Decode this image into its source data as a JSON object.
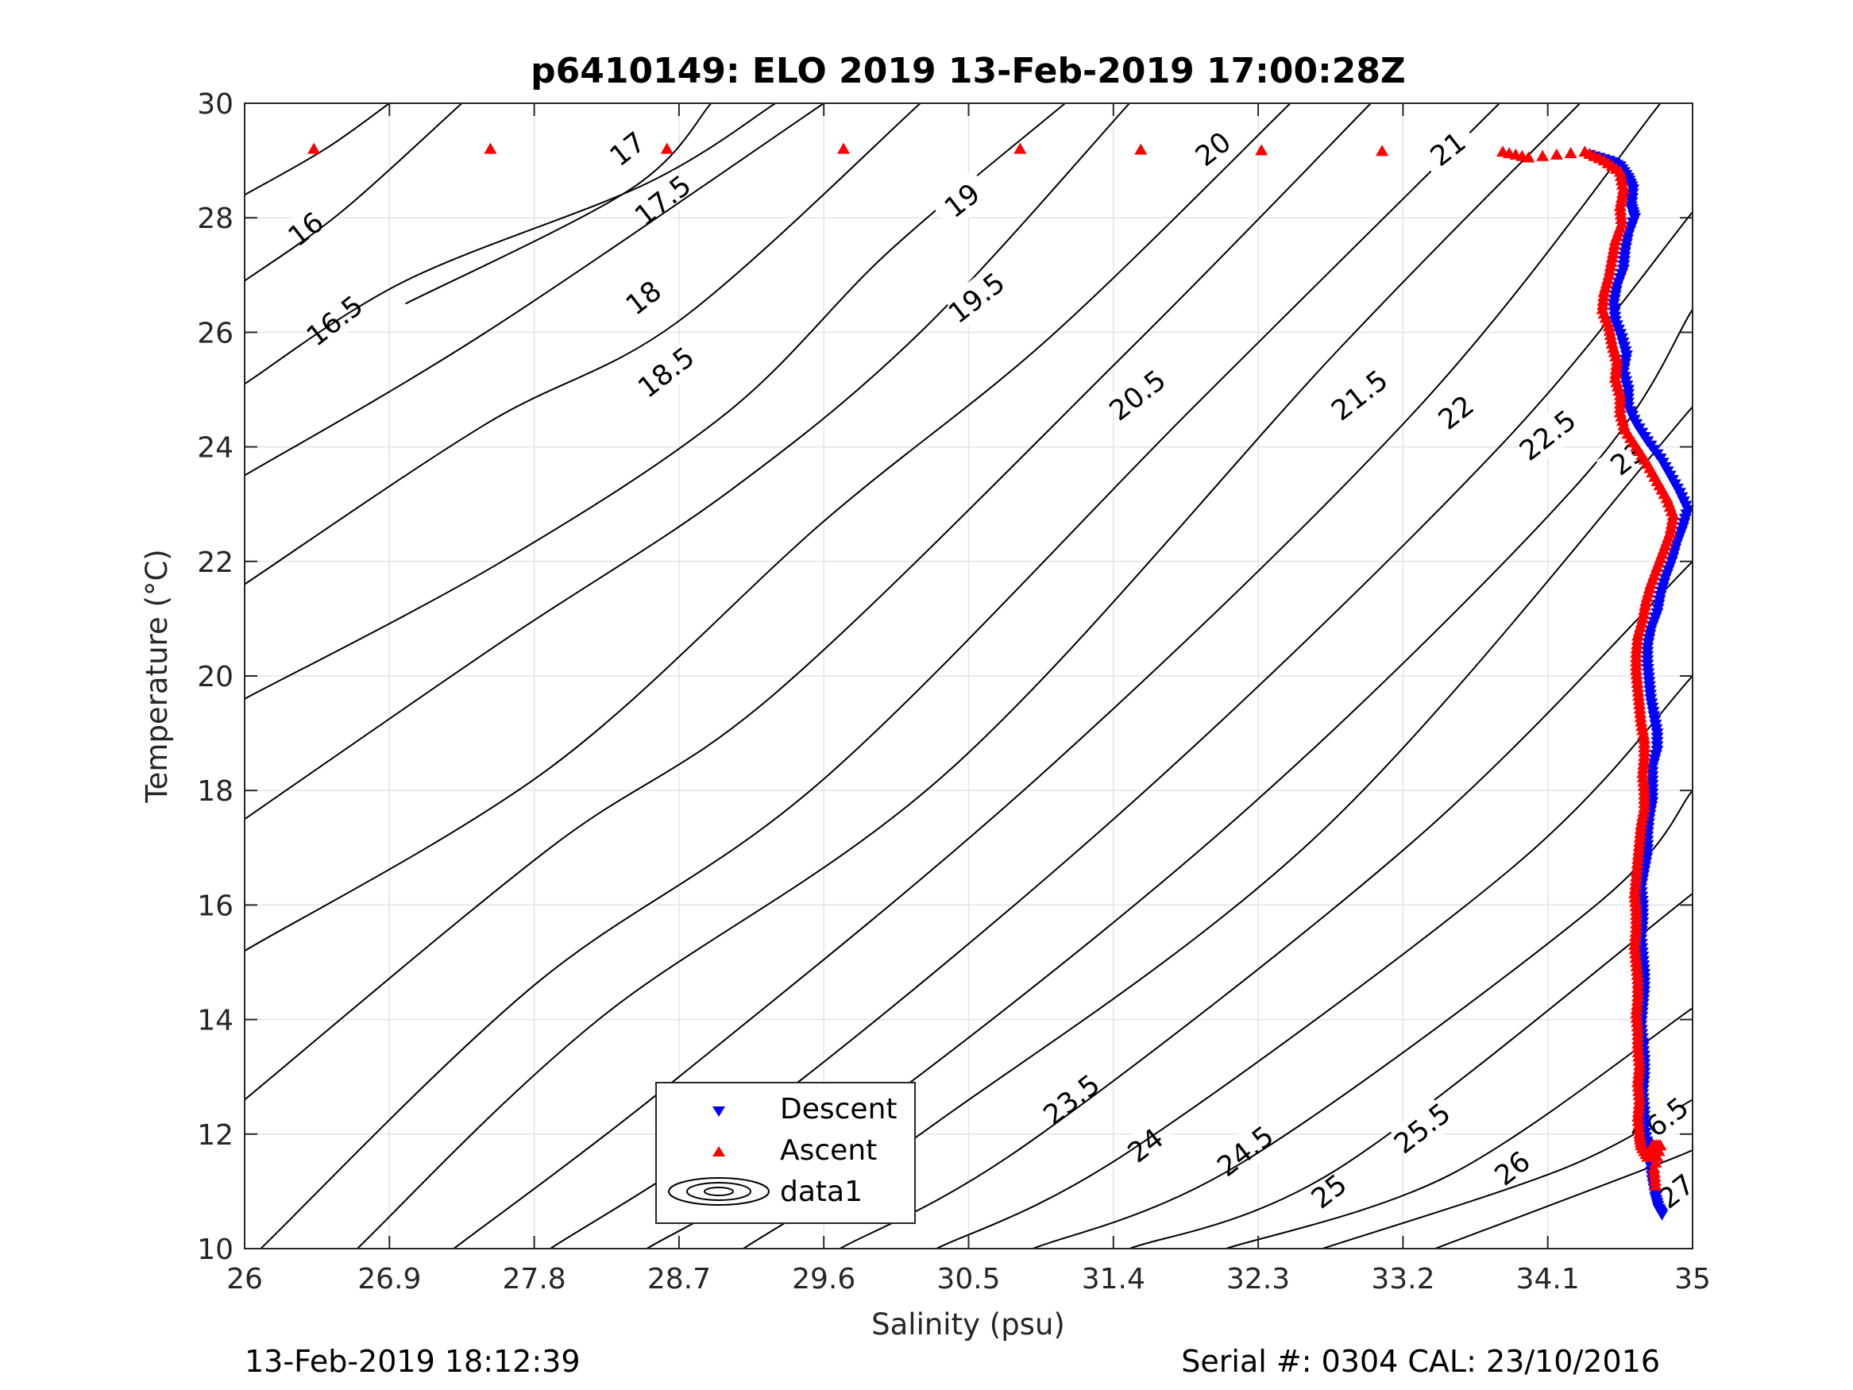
{
  "chart_data": {
    "type": "scatter",
    "title": "p6410149: ELO 2019 13-Feb-2019 17:00:28Z",
    "xlabel": "Salinity (psu)",
    "ylabel": "Temperature (°C)",
    "xlim": [
      26,
      35
    ],
    "ylim": [
      10,
      30
    ],
    "grid": true,
    "x_ticks": [
      "26",
      "26.9",
      "27.8",
      "28.7",
      "29.6",
      "30.5",
      "31.4",
      "32.3",
      "33.2",
      "34.1",
      "35"
    ],
    "y_ticks": [
      "10",
      "12",
      "14",
      "16",
      "18",
      "20",
      "22",
      "24",
      "26",
      "28",
      "30"
    ],
    "legend": {
      "placement": "bottom-center",
      "entries": [
        "Descent",
        "Ascent",
        "data1"
      ]
    },
    "density_contours": [
      {
        "label": "16",
        "points": [
          [
            26,
            28.4
          ],
          [
            26.5,
            29.2
          ],
          [
            26.9,
            30
          ]
        ],
        "label_at": [
          26.38,
          27.8
        ]
      },
      {
        "label": "16.5",
        "points": [
          [
            26,
            26.9
          ],
          [
            26.6,
            28.1
          ],
          [
            27.35,
            30
          ]
        ],
        "label_at": [
          26.56,
          26.2
        ]
      },
      {
        "label": "17",
        "points": [
          [
            27,
            26.5
          ],
          [
            28.4,
            28.5
          ],
          [
            28.9,
            30
          ]
        ],
        "label_at": [
          28.38,
          29.2
        ]
      },
      {
        "label": "17.5",
        "points": [
          [
            26,
            25.1
          ],
          [
            27.0,
            26.9
          ],
          [
            28.5,
            28.6
          ],
          [
            29.3,
            30
          ]
        ],
        "label_at": [
          28.6,
          28.3
        ]
      },
      {
        "label": "18",
        "points": [
          [
            26,
            23.5
          ],
          [
            27.5,
            26.0
          ],
          [
            29.6,
            30
          ]
        ],
        "label_at": [
          28.48,
          26.6
        ]
      },
      {
        "label": "18.5",
        "points": [
          [
            26,
            21.6
          ],
          [
            27.5,
            24.4
          ],
          [
            28.7,
            26.2
          ],
          [
            30.2,
            30
          ]
        ],
        "label_at": [
          28.62,
          25.3
        ]
      },
      {
        "label": "19",
        "points": [
          [
            26,
            19.6
          ],
          [
            27.6,
            22.0
          ],
          [
            29.0,
            24.6
          ],
          [
            30.0,
            27.4
          ],
          [
            31.1,
            30
          ]
        ],
        "label_at": [
          30.46,
          28.3
        ]
      },
      {
        "label": "19.5",
        "points": [
          [
            26,
            17.5
          ],
          [
            27.6,
            20.6
          ],
          [
            29.0,
            23.2
          ],
          [
            30.2,
            26.0
          ],
          [
            31.5,
            30
          ]
        ],
        "label_at": [
          30.55,
          26.6
        ]
      },
      {
        "label": "20",
        "points": [
          [
            26,
            15.2
          ],
          [
            27.9,
            18.4
          ],
          [
            29.6,
            22.7
          ],
          [
            31.0,
            25.9
          ],
          [
            32.5,
            30
          ]
        ],
        "label_at": [
          32.02,
          29.2
        ]
      },
      {
        "label": "20.5",
        "points": [
          [
            26,
            12.6
          ],
          [
            27.9,
            17.0
          ],
          [
            29.3,
            19.7
          ],
          [
            31.5,
            25.7
          ],
          [
            33.0,
            30
          ]
        ],
        "label_at": [
          31.55,
          24.9
        ]
      },
      {
        "label": "21",
        "points": [
          [
            26.1,
            10
          ],
          [
            27.8,
            14.6
          ],
          [
            29.6,
            18.2
          ],
          [
            31.9,
            24.7
          ],
          [
            33.8,
            30
          ]
        ],
        "label_at": [
          33.48,
          29.2
        ]
      },
      {
        "label": "21.5",
        "points": [
          [
            26.7,
            10
          ],
          [
            28.2,
            14.0
          ],
          [
            30.4,
            18.4
          ],
          [
            32.8,
            25.7
          ],
          [
            34.3,
            30
          ]
        ],
        "label_at": [
          32.93,
          24.9
        ]
      },
      {
        "label": "22",
        "points": [
          [
            27.3,
            10
          ],
          [
            28.7,
            13.0
          ],
          [
            31.0,
            18.4
          ],
          [
            33.3,
            24.7
          ],
          [
            34.8,
            30
          ]
        ],
        "label_at": [
          33.53,
          24.6
        ]
      },
      {
        "label": "22.5",
        "points": [
          [
            27.9,
            10
          ],
          [
            29.3,
            12.6
          ],
          [
            31.6,
            18.0
          ],
          [
            33.8,
            24.0
          ],
          [
            35,
            28.1
          ]
        ],
        "label_at": [
          34.1,
          24.2
        ]
      },
      {
        "label": "23",
        "points": [
          [
            28.5,
            10
          ],
          [
            29.8,
            12.2
          ],
          [
            32.2,
            17.6
          ],
          [
            34.3,
            23.4
          ],
          [
            35,
            26.4
          ]
        ],
        "label_at": [
          34.6,
          23.8
        ]
      },
      {
        "label": "23.5",
        "points": [
          [
            29.1,
            10
          ],
          [
            30.3,
            12.2
          ],
          [
            32.7,
            17.3
          ],
          [
            35,
            24.7
          ]
        ],
        "label_at": [
          31.14,
          12.6
        ]
      },
      {
        "label": "24",
        "points": [
          [
            29.7,
            10
          ],
          [
            30.9,
            11.9
          ],
          [
            33.3,
            17.2
          ],
          [
            35,
            22.0
          ]
        ],
        "label_at": [
          31.6,
          11.8
        ]
      },
      {
        "label": "24.5",
        "points": [
          [
            30.3,
            10
          ],
          [
            31.5,
            11.7
          ],
          [
            33.9,
            16.7
          ],
          [
            35,
            20.0
          ]
        ],
        "label_at": [
          32.22,
          11.7
        ]
      },
      {
        "label": "25",
        "points": [
          [
            30.9,
            10
          ],
          [
            32.2,
            11.5
          ],
          [
            34.4,
            16.0
          ],
          [
            35,
            18.0
          ]
        ],
        "label_at": [
          32.74,
          11.0
        ]
      },
      {
        "label": "25.5",
        "points": [
          [
            31.5,
            10
          ],
          [
            32.8,
            11.4
          ],
          [
            35,
            16.2
          ]
        ],
        "label_at": [
          33.32,
          12.1
        ]
      },
      {
        "label": "26",
        "points": [
          [
            32.1,
            10
          ],
          [
            33.5,
            11.3
          ],
          [
            35,
            14.2
          ]
        ],
        "label_at": [
          33.88,
          11.4
        ]
      },
      {
        "label": "26.5",
        "points": [
          [
            32.7,
            10
          ],
          [
            34.2,
            11.4
          ],
          [
            35,
            12.6
          ]
        ],
        "label_at": [
          34.8,
          12.2
        ]
      },
      {
        "label": "27",
        "points": [
          [
            33.4,
            10
          ],
          [
            34.9,
            11.6
          ],
          [
            35,
            11.8
          ]
        ],
        "label_at": [
          34.9,
          11.0
        ]
      }
    ],
    "series": [
      {
        "name": "Descent",
        "color": "#0000ff",
        "marker": "triangle-down",
        "points": [
          [
            34.36,
            29.1
          ],
          [
            34.48,
            29.0
          ],
          [
            34.55,
            28.9
          ],
          [
            34.6,
            28.7
          ],
          [
            34.63,
            28.5
          ],
          [
            34.62,
            28.2
          ],
          [
            34.64,
            28.0
          ],
          [
            34.6,
            27.7
          ],
          [
            34.58,
            27.4
          ],
          [
            34.57,
            27.1
          ],
          [
            34.53,
            26.8
          ],
          [
            34.51,
            26.5
          ],
          [
            34.52,
            26.2
          ],
          [
            34.56,
            25.9
          ],
          [
            34.59,
            25.6
          ],
          [
            34.57,
            25.3
          ],
          [
            34.6,
            25.0
          ],
          [
            34.6,
            24.7
          ],
          [
            34.65,
            24.4
          ],
          [
            34.72,
            24.1
          ],
          [
            34.8,
            23.8
          ],
          [
            34.86,
            23.5
          ],
          [
            34.92,
            23.2
          ],
          [
            34.97,
            22.9
          ],
          [
            34.94,
            22.6
          ],
          [
            34.9,
            22.3
          ],
          [
            34.87,
            22.0
          ],
          [
            34.83,
            21.7
          ],
          [
            34.8,
            21.4
          ],
          [
            34.78,
            21.1
          ],
          [
            34.74,
            20.8
          ],
          [
            34.72,
            20.5
          ],
          [
            34.72,
            20.2
          ],
          [
            34.73,
            19.9
          ],
          [
            34.74,
            19.6
          ],
          [
            34.76,
            19.3
          ],
          [
            34.78,
            19.0
          ],
          [
            34.78,
            18.7
          ],
          [
            34.75,
            18.4
          ],
          [
            34.75,
            18.1
          ],
          [
            34.75,
            17.8
          ],
          [
            34.73,
            17.5
          ],
          [
            34.72,
            17.2
          ],
          [
            34.72,
            16.9
          ],
          [
            34.7,
            16.6
          ],
          [
            34.68,
            16.3
          ],
          [
            34.69,
            16.0
          ],
          [
            34.69,
            15.7
          ],
          [
            34.68,
            15.4
          ],
          [
            34.69,
            15.1
          ],
          [
            34.7,
            14.8
          ],
          [
            34.7,
            14.5
          ],
          [
            34.69,
            14.2
          ],
          [
            34.68,
            13.9
          ],
          [
            34.69,
            13.6
          ],
          [
            34.7,
            13.3
          ],
          [
            34.7,
            13.0
          ],
          [
            34.69,
            12.7
          ],
          [
            34.7,
            12.4
          ],
          [
            34.7,
            12.1
          ],
          [
            34.72,
            11.8
          ],
          [
            34.74,
            11.5
          ],
          [
            34.75,
            11.2
          ],
          [
            34.77,
            10.9
          ],
          [
            34.79,
            10.7
          ],
          [
            34.81,
            10.6
          ]
        ]
      },
      {
        "name": "Ascent",
        "color": "#ff0000",
        "marker": "triangle-up",
        "points": [
          [
            26.43,
            29.2
          ],
          [
            30.82,
            29.2
          ],
          [
            33.82,
            29.15
          ],
          [
            33.98,
            29.05
          ],
          [
            34.33,
            29.15
          ],
          [
            34.45,
            29.0
          ],
          [
            34.55,
            28.8
          ],
          [
            34.57,
            28.5
          ],
          [
            34.55,
            28.2
          ],
          [
            34.56,
            27.9
          ],
          [
            34.52,
            27.6
          ],
          [
            34.5,
            27.3
          ],
          [
            34.48,
            27.0
          ],
          [
            34.45,
            26.7
          ],
          [
            34.44,
            26.4
          ],
          [
            34.48,
            26.1
          ],
          [
            34.5,
            25.8
          ],
          [
            34.53,
            25.5
          ],
          [
            34.52,
            25.2
          ],
          [
            34.55,
            24.9
          ],
          [
            34.55,
            24.6
          ],
          [
            34.58,
            24.3
          ],
          [
            34.65,
            24.0
          ],
          [
            34.72,
            23.7
          ],
          [
            34.78,
            23.4
          ],
          [
            34.84,
            23.1
          ],
          [
            34.88,
            22.8
          ],
          [
            34.86,
            22.5
          ],
          [
            34.82,
            22.2
          ],
          [
            34.78,
            21.9
          ],
          [
            34.74,
            21.6
          ],
          [
            34.71,
            21.3
          ],
          [
            34.69,
            21.0
          ],
          [
            34.66,
            20.7
          ],
          [
            34.65,
            20.4
          ],
          [
            34.65,
            20.1
          ],
          [
            34.66,
            19.8
          ],
          [
            34.67,
            19.5
          ],
          [
            34.68,
            19.2
          ],
          [
            34.7,
            18.9
          ],
          [
            34.7,
            18.6
          ],
          [
            34.69,
            18.3
          ],
          [
            34.7,
            18.0
          ],
          [
            34.7,
            17.7
          ],
          [
            34.68,
            17.4
          ],
          [
            34.67,
            17.1
          ],
          [
            34.66,
            16.8
          ],
          [
            34.65,
            16.5
          ],
          [
            34.64,
            16.2
          ],
          [
            34.65,
            15.9
          ],
          [
            34.65,
            15.6
          ],
          [
            34.64,
            15.3
          ],
          [
            34.65,
            15.0
          ],
          [
            34.66,
            14.7
          ],
          [
            34.66,
            14.4
          ],
          [
            34.65,
            14.1
          ],
          [
            34.66,
            13.8
          ],
          [
            34.66,
            13.5
          ],
          [
            34.67,
            13.2
          ],
          [
            34.66,
            12.9
          ],
          [
            34.67,
            12.6
          ],
          [
            34.66,
            12.3
          ],
          [
            34.67,
            12.0
          ],
          [
            34.68,
            11.8
          ],
          [
            34.72,
            11.6
          ],
          [
            34.75,
            11.8
          ],
          [
            34.8,
            11.8
          ],
          [
            34.76,
            11.4
          ],
          [
            34.77,
            11.1
          ]
        ]
      }
    ]
  },
  "footer": {
    "left": "13-Feb-2019 18:12:39",
    "right": "Serial #: 0304  CAL: 23/10/2016"
  }
}
